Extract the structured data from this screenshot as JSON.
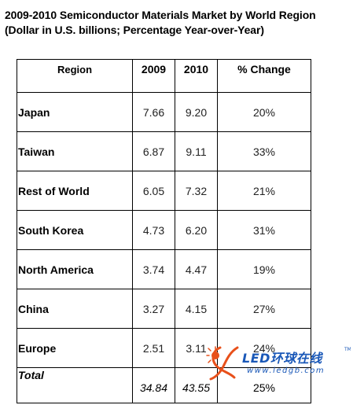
{
  "title_line1": "2009-2010 Semiconductor Materials Market by World Region",
  "title_line2": "(Dollar in U.S. billions; Percentage Year-over-Year)",
  "chart_data": {
    "type": "table",
    "title": "2009-2010 Semiconductor Materials Market by World Region",
    "subtitle": "(Dollar in U.S. billions; Percentage Year-over-Year)",
    "columns": [
      "Region",
      "2009",
      "2010",
      "% Change"
    ],
    "rows": [
      {
        "region": "Japan",
        "y2009": "7.66",
        "y2010": "9.20",
        "change": "20%"
      },
      {
        "region": "Taiwan",
        "y2009": "6.87",
        "y2010": "9.11",
        "change": "33%"
      },
      {
        "region": "Rest of World",
        "y2009": "6.05",
        "y2010": "7.32",
        "change": "21%"
      },
      {
        "region": "South Korea",
        "y2009": "4.73",
        "y2010": "6.20",
        "change": "31%"
      },
      {
        "region": "North America",
        "y2009": "3.74",
        "y2010": "4.47",
        "change": "19%"
      },
      {
        "region": "China",
        "y2009": "3.27",
        "y2010": "4.15",
        "change": "27%"
      },
      {
        "region": "Europe",
        "y2009": "2.51",
        "y2010": "3.11",
        "change": "24%"
      }
    ],
    "total": {
      "label": "Total",
      "y2009": "34.84",
      "y2010": "43.55",
      "change": "25%"
    }
  },
  "watermark": {
    "main": "LED环球在线",
    "url": "www.ledgb.com",
    "tm": "TM",
    "accent_color": "#1a58b8",
    "logo_color": "#e8501a"
  }
}
